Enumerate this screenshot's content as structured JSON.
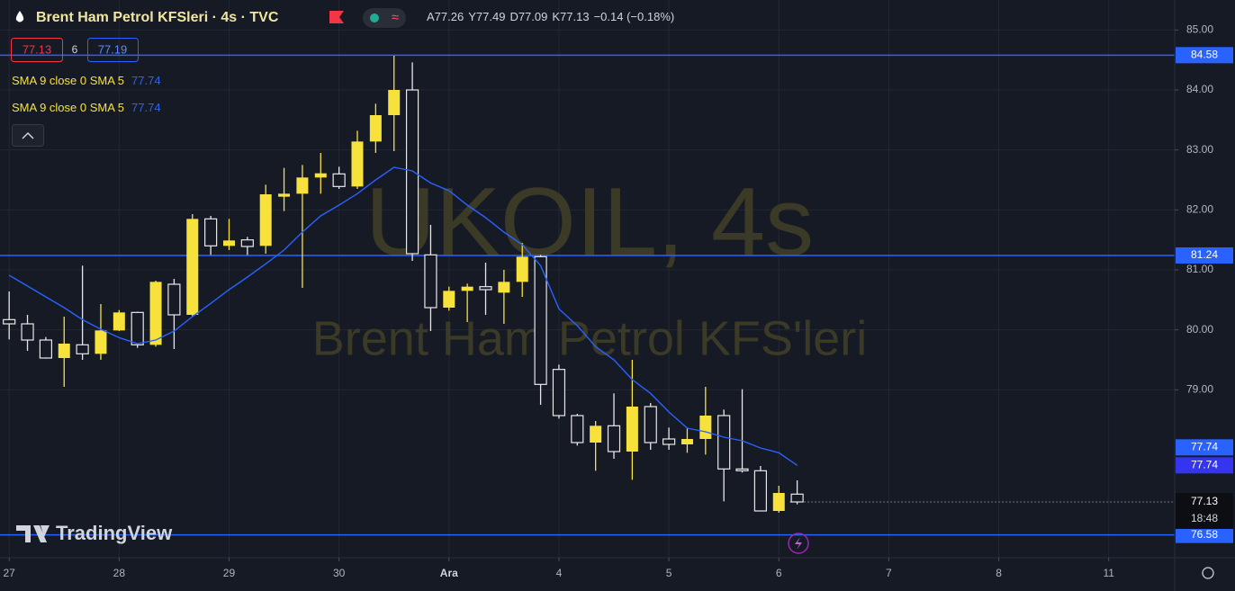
{
  "header": {
    "title": "Brent Ham Petrol KFSleri · 4s · TVC",
    "ohlc": [
      {
        "label": "A",
        "value": 77.26
      },
      {
        "label": "Y",
        "value": 77.49
      },
      {
        "label": "D",
        "value": 77.09
      },
      {
        "label": "K",
        "value": 77.13
      }
    ],
    "change": "−0.14 (−0.18%)"
  },
  "trade": {
    "sell": 77.13,
    "spread": 6,
    "buy": 77.19
  },
  "brand": "TradingView",
  "chart_data": {
    "type": "candlestick",
    "watermark": "UKOIL, 4s",
    "watermark_subtitle": "Brent Ham Petrol KFS'leri",
    "x": [
      0,
      1,
      2,
      3,
      4,
      5,
      6,
      7,
      8,
      9,
      10,
      11,
      12,
      13,
      14,
      15,
      16,
      17,
      18,
      19,
      20,
      21,
      22,
      23,
      24,
      25,
      26,
      27,
      28,
      29,
      30,
      31,
      32,
      33,
      34,
      35,
      36,
      37,
      38,
      39,
      40,
      41,
      42,
      43
    ],
    "open": [
      80.17,
      80.1,
      79.83,
      79.53,
      79.75,
      79.6,
      79.99,
      80.29,
      79.75,
      80.76,
      80.25,
      81.85,
      81.4,
      81.5,
      81.4,
      82.22,
      82.27,
      82.54,
      82.6,
      82.39,
      83.14,
      83.58,
      84.0,
      81.25,
      80.37,
      80.65,
      80.72,
      80.62,
      80.8,
      81.22,
      79.34,
      78.57,
      78.12,
      78.4,
      77.97,
      78.72,
      78.18,
      78.09,
      78.18,
      78.57,
      77.68,
      77.65,
      76.98,
      77.26
    ],
    "high": [
      80.64,
      80.25,
      79.88,
      80.22,
      81.07,
      80.43,
      80.33,
      80.3,
      80.82,
      80.85,
      81.93,
      81.9,
      81.85,
      81.55,
      82.42,
      82.7,
      82.75,
      82.95,
      82.72,
      83.32,
      83.77,
      84.57,
      84.46,
      81.75,
      80.72,
      80.77,
      81.12,
      81.0,
      81.45,
      81.25,
      79.42,
      78.6,
      78.48,
      78.94,
      79.5,
      78.78,
      78.37,
      78.37,
      79.05,
      78.67,
      79.01,
      77.73,
      77.4,
      77.49
    ],
    "low": [
      79.84,
      79.65,
      79.52,
      79.05,
      79.5,
      79.5,
      79.98,
      79.7,
      79.72,
      79.68,
      80.22,
      81.25,
      81.33,
      81.25,
      81.27,
      81.98,
      80.7,
      82.27,
      82.35,
      82.35,
      82.95,
      82.98,
      81.15,
      79.98,
      80.32,
      80.13,
      80.25,
      80.1,
      80.55,
      78.75,
      78.52,
      78.07,
      77.65,
      77.85,
      77.5,
      78.0,
      78.0,
      77.95,
      77.92,
      77.14,
      77.62,
      76.98,
      76.95,
      77.09
    ],
    "close": [
      80.1,
      79.83,
      79.53,
      79.77,
      79.6,
      79.99,
      80.29,
      79.75,
      80.8,
      80.25,
      81.85,
      81.4,
      81.49,
      81.39,
      82.26,
      82.27,
      82.54,
      82.61,
      82.39,
      83.14,
      83.58,
      84.0,
      81.27,
      80.37,
      80.65,
      80.72,
      80.67,
      80.8,
      81.22,
      79.09,
      78.57,
      78.12,
      78.4,
      77.97,
      78.72,
      78.12,
      78.09,
      78.18,
      78.57,
      77.68,
      77.65,
      76.98,
      77.28,
      77.13
    ],
    "up_color": "#f7e23b",
    "down_color": "#e8e8e8",
    "indicators": [
      {
        "name": "SMA 9 close 0 SMA 5",
        "last": 77.74,
        "color": "#2962ff",
        "badge_color": "#2962ff",
        "values": [
          80.91,
          80.73,
          80.55,
          80.37,
          80.17,
          80.01,
          79.87,
          79.77,
          79.83,
          79.98,
          80.22,
          80.44,
          80.67,
          80.88,
          81.1,
          81.33,
          81.63,
          81.9,
          82.08,
          82.27,
          82.5,
          82.71,
          82.65,
          82.45,
          82.32,
          82.08,
          81.87,
          81.63,
          81.42,
          81.07,
          80.35,
          80.07,
          79.72,
          79.5,
          79.17,
          78.94,
          78.63,
          78.36,
          78.3,
          78.21,
          78.15,
          78.03,
          77.95,
          77.74
        ]
      },
      {
        "name": "SMA 9 close 0 SMA 5",
        "last": 77.74,
        "color": "#2962ff",
        "badge_color": "#3535f0"
      }
    ],
    "hlines": [
      84.58,
      81.24,
      76.58
    ],
    "hline_color": "#2962ff",
    "countdown": "18:48",
    "xlim": [
      -0.5,
      63.6
    ],
    "ylim": [
      76.2,
      85.5
    ],
    "xticks": [
      {
        "value": 0,
        "label": "27"
      },
      {
        "value": 6,
        "label": "28"
      },
      {
        "value": 12,
        "label": "29"
      },
      {
        "value": 18,
        "label": "30"
      },
      {
        "value": 24,
        "label": "Ara"
      },
      {
        "value": 30,
        "label": "4"
      },
      {
        "value": 36,
        "label": "5"
      },
      {
        "value": 42,
        "label": "6"
      },
      {
        "value": 48,
        "label": "7"
      },
      {
        "value": 54,
        "label": "8"
      },
      {
        "value": 60,
        "label": "11"
      }
    ],
    "yticks": [
      {
        "value": 79,
        "label": "79.00"
      },
      {
        "value": 80,
        "label": "80.00"
      },
      {
        "value": 81,
        "label": "81.00"
      },
      {
        "value": 82,
        "label": "82.00"
      },
      {
        "value": 83,
        "label": "83.00"
      },
      {
        "value": 84,
        "label": "84.00"
      },
      {
        "value": 85,
        "label": "85.00"
      }
    ],
    "grid": true
  }
}
